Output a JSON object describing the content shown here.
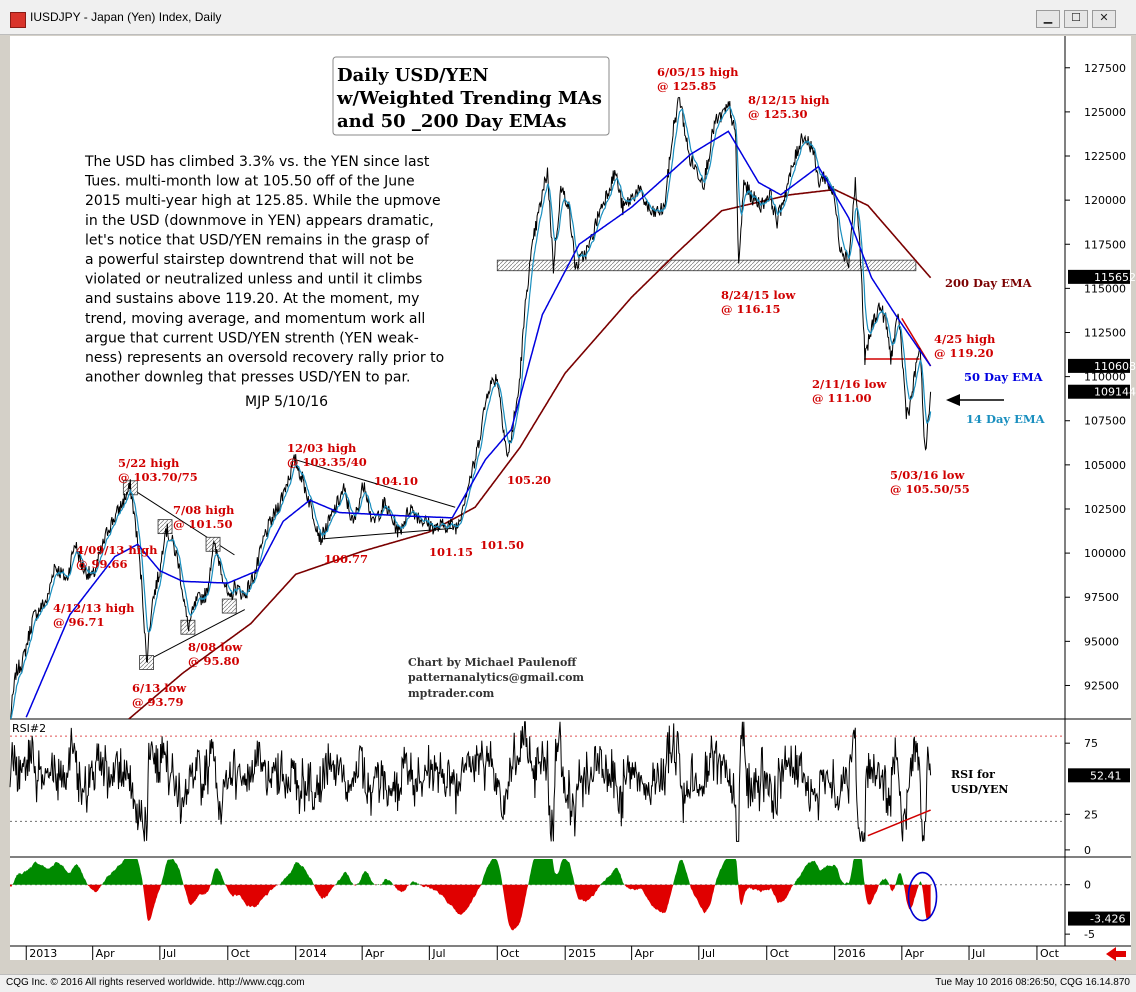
{
  "window": {
    "title": "IUSDJPY - Japan (Yen) Index, Daily",
    "buttons": {
      "minimize": "▁",
      "maximize": "☐",
      "close": "✕"
    }
  },
  "status_bar": {
    "copyright": "CQG Inc. © 2016 All rights reserved worldwide. http://www.cqg.com",
    "timestamp": "Tue May 10 2016 08:26:50, CQG 16.14.870"
  },
  "colors": {
    "price": "#000000",
    "ma14": "#1a8fbf",
    "ema50": "#0000e0",
    "ema200": "#7a0000",
    "annotation": "#d00000",
    "positive": "#008a00",
    "negative": "#e00000",
    "price_tag_bg": "#000000"
  },
  "chart_data": [
    {
      "type": "line",
      "panel": "price",
      "title_box": [
        "Daily USD/YEN",
        "w/Weighted Trending MAs",
        "and 50 _200 Day EMAs"
      ],
      "commentary": [
        "The USD has climbed 3.3% vs. the YEN since last",
        "Tues. multi-month low at 105.50 off of the June",
        "2015 multi-year high at 125.85. While the upmove",
        "in the USD (downmove in YEN) appears dramatic,",
        "let's notice that USD/YEN remains in the grasp of",
        "a powerful stairstep downtrend that will not be",
        "violated or neutralized unless and until it climbs",
        "and sustains above 119.20. At the moment, my",
        "trend, moving average, and momentum work all",
        "argue that current USD/YEN strenth (YEN weak-",
        "ness) represents an oversold recovery rally prior to",
        "another downleg that presses USD/YEN to par."
      ],
      "signature": "MJP 5/10/16",
      "credits": [
        "Chart by Michael Paulenoff",
        "patternanalytics@gmail.com",
        "mptrader.com"
      ],
      "y_ticks": [
        "127500",
        "125000",
        "122500",
        "120000",
        "117500",
        "115000",
        "112500",
        "110000",
        "107500",
        "105000",
        "102500",
        "100000",
        "97500",
        "95000",
        "92500"
      ],
      "ylim": [
        90600,
        129300
      ],
      "last_value_tags": [
        {
          "label": "115652",
          "value": 115652,
          "series": "ema200"
        },
        {
          "label": "110608",
          "value": 110608,
          "series": "ema50"
        },
        {
          "label": "109144",
          "value": 109144,
          "series": "price"
        }
      ],
      "series_labels": [
        {
          "text": "200 Day EMA",
          "series": "ema200"
        },
        {
          "text": "50 Day EMA",
          "series": "ema50"
        },
        {
          "text": "14 Day EMA",
          "series": "ma14"
        }
      ],
      "price_anchors": [
        {
          "d": "2012-12-10",
          "v": 90.5
        },
        {
          "d": "2012-12-18",
          "v": 93.2
        },
        {
          "d": "2012-12-28",
          "v": 94.0
        },
        {
          "d": "2013-01-10",
          "v": 96.3
        },
        {
          "d": "2013-01-17",
          "v": 96.71
        },
        {
          "d": "2013-01-30",
          "v": 97.4
        },
        {
          "d": "2013-02-08",
          "v": 99.3
        },
        {
          "d": "2013-02-25",
          "v": 98.5
        },
        {
          "d": "2013-03-08",
          "v": 100.6
        },
        {
          "d": "2013-03-18",
          "v": 99.2
        },
        {
          "d": "2013-04-01",
          "v": 98.6
        },
        {
          "d": "2013-04-09",
          "v": 99.66
        },
        {
          "d": "2013-04-22",
          "v": 101.4
        },
        {
          "d": "2013-05-06",
          "v": 102.4
        },
        {
          "d": "2013-05-22",
          "v": 103.75
        },
        {
          "d": "2013-05-30",
          "v": 101.3
        },
        {
          "d": "2013-06-07",
          "v": 98.0
        },
        {
          "d": "2013-06-13",
          "v": 93.79
        },
        {
          "d": "2013-06-20",
          "v": 97.1
        },
        {
          "d": "2013-07-02",
          "v": 99.2
        },
        {
          "d": "2013-07-08",
          "v": 101.5
        },
        {
          "d": "2013-07-18",
          "v": 100.6
        },
        {
          "d": "2013-07-26",
          "v": 99.5
        },
        {
          "d": "2013-08-08",
          "v": 95.8
        },
        {
          "d": "2013-08-20",
          "v": 97.3
        },
        {
          "d": "2013-09-03",
          "v": 97.7
        },
        {
          "d": "2013-09-11",
          "v": 100.5
        },
        {
          "d": "2013-09-20",
          "v": 99.5
        },
        {
          "d": "2013-10-03",
          "v": 97.2
        },
        {
          "d": "2013-10-10",
          "v": 98.1
        },
        {
          "d": "2013-10-24",
          "v": 97.6
        },
        {
          "d": "2013-11-08",
          "v": 99.0
        },
        {
          "d": "2013-11-20",
          "v": 101.0
        },
        {
          "d": "2013-12-10",
          "v": 102.8
        },
        {
          "d": "2013-12-20",
          "v": 104.0
        },
        {
          "d": "2013-12-31",
          "v": 105.3
        },
        {
          "d": "2014-01-10",
          "v": 104.2
        },
        {
          "d": "2014-01-24",
          "v": 102.3
        },
        {
          "d": "2014-02-04",
          "v": 100.77
        },
        {
          "d": "2014-02-20",
          "v": 102.2
        },
        {
          "d": "2014-03-07",
          "v": 103.6
        },
        {
          "d": "2014-03-20",
          "v": 101.6
        },
        {
          "d": "2014-04-04",
          "v": 104.1
        },
        {
          "d": "2014-04-15",
          "v": 101.6
        },
        {
          "d": "2014-05-01",
          "v": 102.8
        },
        {
          "d": "2014-05-21",
          "v": 101.15
        },
        {
          "d": "2014-06-05",
          "v": 102.6
        },
        {
          "d": "2014-06-20",
          "v": 101.9
        },
        {
          "d": "2014-07-10",
          "v": 101.4
        },
        {
          "d": "2014-07-22",
          "v": 101.6
        },
        {
          "d": "2014-08-08",
          "v": 101.5
        },
        {
          "d": "2014-08-20",
          "v": 103.5
        },
        {
          "d": "2014-09-01",
          "v": 105.2
        },
        {
          "d": "2014-09-19",
          "v": 109.4
        },
        {
          "d": "2014-10-01",
          "v": 110.0
        },
        {
          "d": "2014-10-15",
          "v": 105.3
        },
        {
          "d": "2014-10-30",
          "v": 109.2
        },
        {
          "d": "2014-11-10",
          "v": 115.0
        },
        {
          "d": "2014-11-20",
          "v": 118.0
        },
        {
          "d": "2014-12-08",
          "v": 121.7
        },
        {
          "d": "2014-12-16",
          "v": 116.2
        },
        {
          "d": "2014-12-26",
          "v": 120.6
        },
        {
          "d": "2015-01-05",
          "v": 119.9
        },
        {
          "d": "2015-01-15",
          "v": 116.2
        },
        {
          "d": "2015-02-02",
          "v": 117.3
        },
        {
          "d": "2015-02-16",
          "v": 119.3
        },
        {
          "d": "2015-03-10",
          "v": 121.6
        },
        {
          "d": "2015-03-20",
          "v": 119.5
        },
        {
          "d": "2015-04-10",
          "v": 120.6
        },
        {
          "d": "2015-04-28",
          "v": 119.2
        },
        {
          "d": "2015-05-15",
          "v": 119.5
        },
        {
          "d": "2015-05-28",
          "v": 124.2
        },
        {
          "d": "2015-06-05",
          "v": 125.85
        },
        {
          "d": "2015-06-18",
          "v": 122.4
        },
        {
          "d": "2015-07-08",
          "v": 121.0
        },
        {
          "d": "2015-07-22",
          "v": 124.3
        },
        {
          "d": "2015-08-12",
          "v": 125.3
        },
        {
          "d": "2015-08-20",
          "v": 123.4
        },
        {
          "d": "2015-08-24",
          "v": 116.15
        },
        {
          "d": "2015-08-31",
          "v": 121.0
        },
        {
          "d": "2015-09-10",
          "v": 120.2
        },
        {
          "d": "2015-09-24",
          "v": 119.7
        },
        {
          "d": "2015-10-05",
          "v": 120.4
        },
        {
          "d": "2015-10-15",
          "v": 118.8
        },
        {
          "d": "2015-10-30",
          "v": 121.0
        },
        {
          "d": "2015-11-18",
          "v": 123.7
        },
        {
          "d": "2015-12-02",
          "v": 123.0
        },
        {
          "d": "2015-12-10",
          "v": 121.0
        },
        {
          "d": "2015-12-18",
          "v": 121.4
        },
        {
          "d": "2015-12-31",
          "v": 120.3
        },
        {
          "d": "2016-01-08",
          "v": 117.5
        },
        {
          "d": "2016-01-20",
          "v": 116.5
        },
        {
          "d": "2016-01-29",
          "v": 121.0
        },
        {
          "d": "2016-02-05",
          "v": 116.8
        },
        {
          "d": "2016-02-11",
          "v": 111.0
        },
        {
          "d": "2016-02-22",
          "v": 113.1
        },
        {
          "d": "2016-03-02",
          "v": 114.0
        },
        {
          "d": "2016-03-10",
          "v": 113.2
        },
        {
          "d": "2016-03-17",
          "v": 111.1
        },
        {
          "d": "2016-03-28",
          "v": 113.5
        },
        {
          "d": "2016-04-07",
          "v": 108.0
        },
        {
          "d": "2016-04-12",
          "v": 108.3
        },
        {
          "d": "2016-04-25",
          "v": 111.8
        },
        {
          "d": "2016-05-03",
          "v": 105.5
        },
        {
          "d": "2016-05-10",
          "v": 109.14
        }
      ],
      "ema200_anchors": [
        {
          "d": "2013-05-20",
          "v": 90.6
        },
        {
          "d": "2013-08-01",
          "v": 93.2
        },
        {
          "d": "2013-11-01",
          "v": 96.0
        },
        {
          "d": "2014-01-01",
          "v": 98.8
        },
        {
          "d": "2014-04-01",
          "v": 100.1
        },
        {
          "d": "2014-07-01",
          "v": 101.2
        },
        {
          "d": "2014-09-01",
          "v": 102.6
        },
        {
          "d": "2014-11-01",
          "v": 106.0
        },
        {
          "d": "2015-01-01",
          "v": 110.2
        },
        {
          "d": "2015-04-01",
          "v": 114.5
        },
        {
          "d": "2015-06-01",
          "v": 117.0
        },
        {
          "d": "2015-08-01",
          "v": 119.4
        },
        {
          "d": "2015-11-01",
          "v": 120.3
        },
        {
          "d": "2016-01-01",
          "v": 120.6
        },
        {
          "d": "2016-02-15",
          "v": 119.7
        },
        {
          "d": "2016-03-15",
          "v": 118.3
        },
        {
          "d": "2016-05-10",
          "v": 115.6
        }
      ],
      "ema50_anchors": [
        {
          "d": "2013-01-01",
          "v": 90.7
        },
        {
          "d": "2013-03-01",
          "v": 96.5
        },
        {
          "d": "2013-05-01",
          "v": 99.8
        },
        {
          "d": "2013-06-01",
          "v": 100.5
        },
        {
          "d": "2013-07-01",
          "v": 99.0
        },
        {
          "d": "2013-08-01",
          "v": 98.4
        },
        {
          "d": "2013-10-01",
          "v": 98.3
        },
        {
          "d": "2013-11-10",
          "v": 99.0
        },
        {
          "d": "2013-12-15",
          "v": 101.8
        },
        {
          "d": "2014-01-20",
          "v": 103.0
        },
        {
          "d": "2014-03-01",
          "v": 102.3
        },
        {
          "d": "2014-06-01",
          "v": 102.1
        },
        {
          "d": "2014-08-01",
          "v": 102.0
        },
        {
          "d": "2014-09-15",
          "v": 105.3
        },
        {
          "d": "2014-10-20",
          "v": 107.0
        },
        {
          "d": "2014-12-01",
          "v": 113.5
        },
        {
          "d": "2015-01-20",
          "v": 117.5
        },
        {
          "d": "2015-04-01",
          "v": 119.6
        },
        {
          "d": "2015-06-20",
          "v": 122.6
        },
        {
          "d": "2015-08-10",
          "v": 123.9
        },
        {
          "d": "2015-09-20",
          "v": 121.0
        },
        {
          "d": "2015-10-20",
          "v": 120.3
        },
        {
          "d": "2015-12-10",
          "v": 121.9
        },
        {
          "d": "2016-01-20",
          "v": 119.0
        },
        {
          "d": "2016-02-20",
          "v": 115.6
        },
        {
          "d": "2016-03-25",
          "v": 113.4
        },
        {
          "d": "2016-05-10",
          "v": 110.6
        }
      ],
      "trendlines": [
        {
          "a": {
            "d": "2013-05-22",
            "v": 103.7
          },
          "b": {
            "d": "2013-10-10",
            "v": 99.9
          }
        },
        {
          "a": {
            "d": "2013-06-13",
            "v": 93.9
          },
          "b": {
            "d": "2013-10-24",
            "v": 96.8
          }
        },
        {
          "a": {
            "d": "2013-12-31",
            "v": 105.3
          },
          "b": {
            "d": "2014-08-05",
            "v": 102.6
          }
        },
        {
          "a": {
            "d": "2014-02-04",
            "v": 100.8
          },
          "b": {
            "d": "2014-08-01",
            "v": 101.4
          }
        },
        {
          "a": {
            "d": "2016-04-01",
            "v": 113.3
          },
          "b": {
            "d": "2016-05-10",
            "v": 110.6
          }
        }
      ],
      "hlines": [
        {
          "a": {
            "d": "2016-02-10",
            "v": 111.0
          },
          "b": {
            "d": "2016-04-25",
            "v": 111.0
          }
        }
      ],
      "support_band": {
        "from": "2014-10-01",
        "to": "2016-04-20",
        "low": 116.0,
        "high": 116.6
      },
      "marker_boxes": [
        {
          "d": "2013-05-22",
          "v": 103.7
        },
        {
          "d": "2013-07-08",
          "v": 101.5
        },
        {
          "d": "2013-06-13",
          "v": 93.8
        },
        {
          "d": "2013-08-08",
          "v": 95.8
        },
        {
          "d": "2013-09-11",
          "v": 100.5
        },
        {
          "d": "2013-10-03",
          "v": 97.0
        }
      ],
      "annotations": [
        {
          "lines": [
            "5/22 high",
            "@ 103.70/75"
          ]
        },
        {
          "lines": [
            "7/08 high",
            "@ 101.50"
          ]
        },
        {
          "lines": [
            "4/09/13 high",
            "@ 99.66"
          ]
        },
        {
          "lines": [
            "4/12/13 high",
            "@ 96.71"
          ]
        },
        {
          "lines": [
            "8/08 low",
            "@ 95.80"
          ]
        },
        {
          "lines": [
            "6/13 low",
            "@ 93.79"
          ]
        },
        {
          "lines": [
            "12/03 high",
            "@ 103.35/40"
          ]
        },
        {
          "lines": [
            "104.10"
          ]
        },
        {
          "lines": [
            "100.77"
          ]
        },
        {
          "lines": [
            "101.15"
          ]
        },
        {
          "lines": [
            "101.50"
          ]
        },
        {
          "lines": [
            "105.20"
          ]
        },
        {
          "lines": [
            "6/05/15 high",
            "@ 125.85"
          ]
        },
        {
          "lines": [
            "8/12/15 high",
            "@ 125.30"
          ]
        },
        {
          "lines": [
            "8/24/15 low",
            "@ 116.15"
          ]
        },
        {
          "lines": [
            "4/25 high",
            "@ 119.20"
          ]
        },
        {
          "lines": [
            "2/11/16 low",
            "@ 111.00"
          ]
        },
        {
          "lines": [
            "5/03/16 low",
            "@ 105.50/55"
          ]
        }
      ]
    },
    {
      "type": "line",
      "panel": "rsi",
      "label": "RSI#2",
      "y_ticks": [
        "75",
        "25",
        "0"
      ],
      "ylim": [
        -5,
        92
      ],
      "last_value_tag": "52.41",
      "last_value": 52.41,
      "annotation": [
        "RSI for",
        "USD/YEN"
      ],
      "reference_levels": [
        80,
        20
      ]
    },
    {
      "type": "area",
      "panel": "oscillator",
      "y_ticks": [
        "0",
        "-5"
      ],
      "ylim": [
        -6.2,
        2.8
      ],
      "last_value_tag": "-3.426",
      "last_value": -3.426,
      "circled": {
        "from": "2016-04-10",
        "to": "2016-05-18"
      }
    }
  ],
  "x_axis": {
    "range": [
      "2012-12-10",
      "2016-11-08"
    ],
    "ticks": [
      {
        "label": "2013",
        "d": "2013-01-01"
      },
      {
        "label": "Apr",
        "d": "2013-04-01"
      },
      {
        "label": "Jul",
        "d": "2013-07-01"
      },
      {
        "label": "Oct",
        "d": "2013-10-01"
      },
      {
        "label": "2014",
        "d": "2014-01-01"
      },
      {
        "label": "Apr",
        "d": "2014-04-01"
      },
      {
        "label": "Jul",
        "d": "2014-07-01"
      },
      {
        "label": "Oct",
        "d": "2014-10-01"
      },
      {
        "label": "2015",
        "d": "2015-01-01"
      },
      {
        "label": "Apr",
        "d": "2015-04-01"
      },
      {
        "label": "Jul",
        "d": "2015-07-01"
      },
      {
        "label": "Oct",
        "d": "2015-10-01"
      },
      {
        "label": "2016",
        "d": "2016-01-01"
      },
      {
        "label": "Apr",
        "d": "2016-04-01"
      },
      {
        "label": "Jul",
        "d": "2016-07-01"
      },
      {
        "label": "Oct",
        "d": "2016-10-01"
      }
    ]
  }
}
